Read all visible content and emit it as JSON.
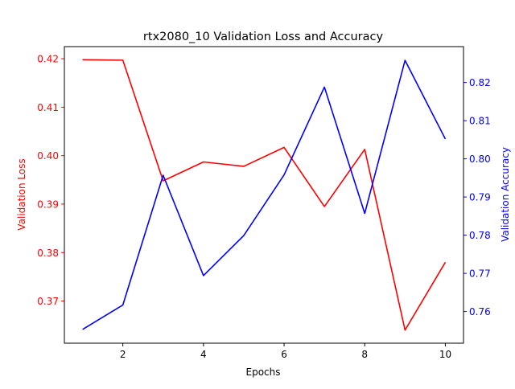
{
  "chart_data": {
    "type": "line",
    "title": "rtx2080_10 Validation Loss and Accuracy",
    "xlabel": "Epochs",
    "x": [
      1,
      2,
      3,
      4,
      5,
      6,
      7,
      8,
      9,
      10
    ],
    "xlim": [
      0.55,
      10.45
    ],
    "xticks": [
      2,
      4,
      6,
      8,
      10
    ],
    "grid": false,
    "left_axis": {
      "ylabel": "Validation Loss",
      "color": "#ff0000",
      "ylim": [
        0.3613,
        0.4225
      ],
      "ticks": [
        0.37,
        0.38,
        0.39,
        0.4,
        0.41,
        0.42
      ],
      "tick_labels": [
        "0.37",
        "0.38",
        "0.39",
        "0.40",
        "0.41",
        "0.42"
      ]
    },
    "right_axis": {
      "ylabel": "Validation Accuracy",
      "color": "#0000ff",
      "ylim": [
        0.7517,
        0.8294
      ],
      "ticks": [
        0.76,
        0.77,
        0.78,
        0.79,
        0.8,
        0.81,
        0.82
      ],
      "tick_labels": [
        "0.76",
        "0.77",
        "0.78",
        "0.79",
        "0.80",
        "0.81",
        "0.82"
      ]
    },
    "series": [
      {
        "axis": "left",
        "color": "#ff0000",
        "values": [
          0.4198,
          0.4197,
          0.3948,
          0.3987,
          0.3978,
          0.4017,
          0.3895,
          0.4013,
          0.364,
          0.378
        ]
      },
      {
        "axis": "right",
        "color": "#0000ff",
        "values": [
          0.7553,
          0.7617,
          0.7957,
          0.7694,
          0.7799,
          0.7958,
          0.8188,
          0.7857,
          0.8258,
          0.8052
        ]
      }
    ]
  }
}
